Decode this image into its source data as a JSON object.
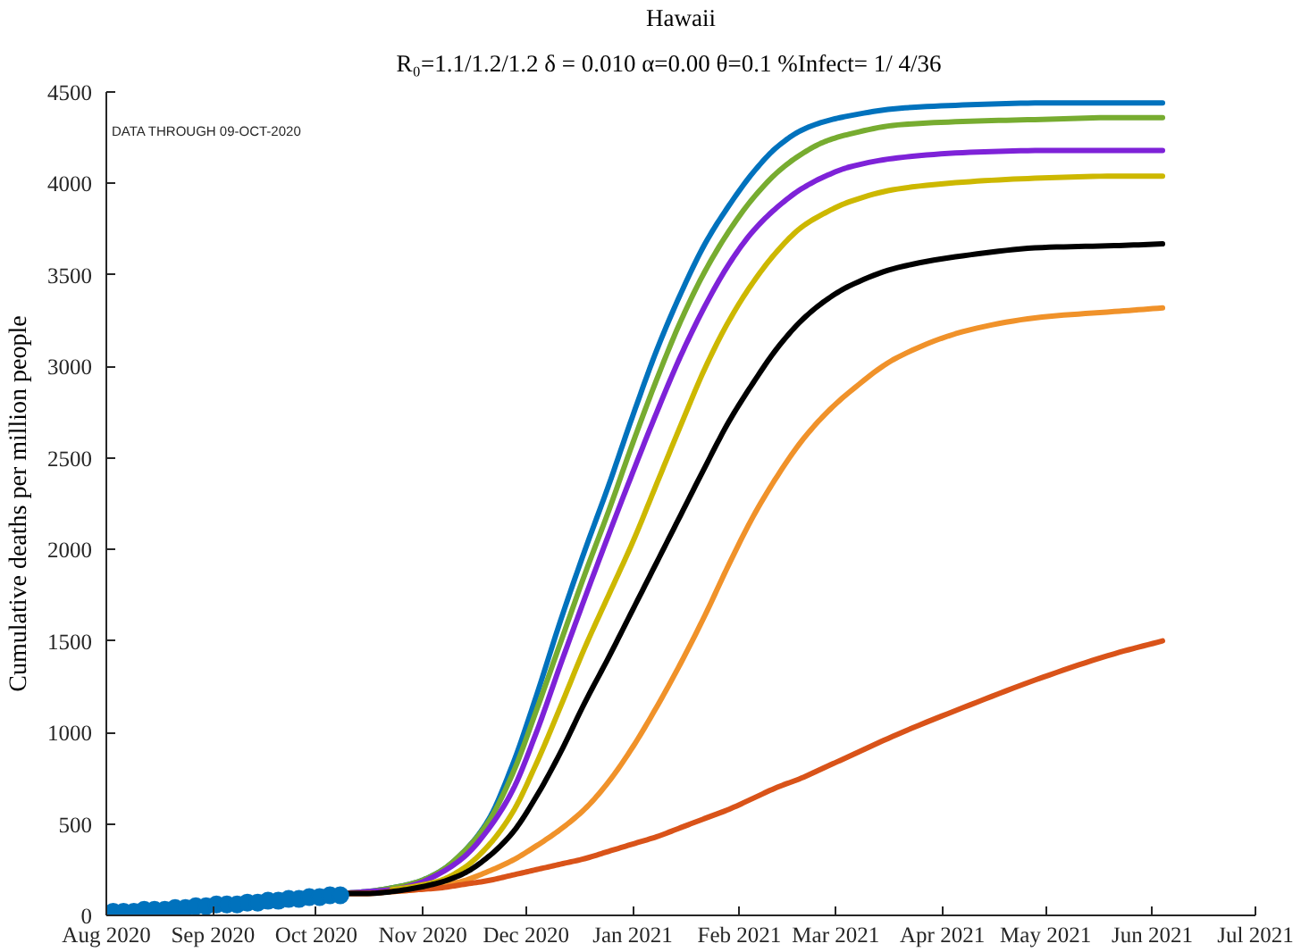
{
  "chart_data": {
    "type": "line",
    "title": "Hawaii",
    "subtitle": "R₀=1.1/1.2/1.2  δ = 0.010  α=0.00  θ=0.1  %Infect= 1/ 4/36",
    "ylabel": "Cumulative deaths per million people",
    "annotations": [
      "DATA THROUGH 09-OCT-2020"
    ],
    "xlim": [
      "2020-08-01",
      "2021-07-01"
    ],
    "xticks": [
      {
        "value": "2020-08-01",
        "label": "Aug 2020"
      },
      {
        "value": "2020-09-01",
        "label": "Sep 2020"
      },
      {
        "value": "2020-10-01",
        "label": "Oct 2020"
      },
      {
        "value": "2020-11-01",
        "label": "Nov 2020"
      },
      {
        "value": "2020-12-01",
        "label": "Dec 2020"
      },
      {
        "value": "2021-01-01",
        "label": "Jan 2021"
      },
      {
        "value": "2021-02-01",
        "label": "Feb 2021"
      },
      {
        "value": "2021-03-01",
        "label": "Mar 2021"
      },
      {
        "value": "2021-04-01",
        "label": "Apr 2021"
      },
      {
        "value": "2021-05-01",
        "label": "May 2021"
      },
      {
        "value": "2021-06-01",
        "label": "Jun 2021"
      },
      {
        "value": "2021-07-01",
        "label": "Jul 2021"
      }
    ],
    "ylim": [
      0,
      4500
    ],
    "yticks": [
      0,
      500,
      1000,
      1500,
      2000,
      2500,
      3000,
      3500,
      4000,
      4500
    ],
    "x": [
      "2020-10-09",
      "2020-10-16",
      "2020-10-23",
      "2020-10-30",
      "2020-11-06",
      "2020-11-13",
      "2020-11-20",
      "2020-11-27",
      "2020-12-04",
      "2020-12-11",
      "2020-12-18",
      "2020-12-25",
      "2021-01-01",
      "2021-01-08",
      "2021-01-15",
      "2021-01-22",
      "2021-01-29",
      "2021-02-05",
      "2021-02-12",
      "2021-02-19",
      "2021-02-26",
      "2021-03-05",
      "2021-03-19",
      "2021-04-09",
      "2021-04-30",
      "2021-05-21",
      "2021-06-04"
    ],
    "series": [
      {
        "color": "#0072bd",
        "values": [
          120,
          130,
          150,
          180,
          240,
          350,
          520,
          820,
          1200,
          1610,
          1990,
          2350,
          2730,
          3090,
          3400,
          3670,
          3880,
          4060,
          4200,
          4290,
          4340,
          4370,
          4410,
          4430,
          4440,
          4440,
          4440
        ]
      },
      {
        "color": "#77ac30",
        "values": [
          120,
          130,
          150,
          180,
          240,
          350,
          510,
          770,
          1120,
          1490,
          1860,
          2210,
          2580,
          2930,
          3250,
          3520,
          3740,
          3920,
          4060,
          4160,
          4230,
          4270,
          4320,
          4340,
          4350,
          4360,
          4360
        ]
      },
      {
        "color": "#7e22d8",
        "values": [
          120,
          130,
          140,
          170,
          230,
          320,
          470,
          680,
          1000,
          1370,
          1730,
          2080,
          2420,
          2750,
          3060,
          3330,
          3560,
          3740,
          3870,
          3970,
          4040,
          4090,
          4140,
          4170,
          4180,
          4180,
          4180
        ]
      },
      {
        "color": "#cdb800",
        "values": [
          null,
          null,
          140,
          160,
          190,
          260,
          380,
          560,
          830,
          1140,
          1460,
          1750,
          2040,
          2360,
          2680,
          2990,
          3250,
          3460,
          3630,
          3760,
          3840,
          3900,
          3970,
          4010,
          4030,
          4040,
          4040
        ]
      },
      {
        "color": "#f0922a",
        "values": [
          120,
          120,
          130,
          140,
          160,
          190,
          240,
          300,
          380,
          470,
          580,
          730,
          920,
          1140,
          1380,
          1640,
          1920,
          2180,
          2400,
          2590,
          2740,
          2860,
          3050,
          3200,
          3270,
          3300,
          3320
        ]
      },
      {
        "color": "#d95319",
        "values": [
          120,
          120,
          130,
          140,
          150,
          170,
          190,
          220,
          250,
          280,
          310,
          350,
          390,
          430,
          480,
          530,
          580,
          640,
          700,
          750,
          810,
          870,
          990,
          1150,
          1300,
          1430,
          1500
        ]
      },
      {
        "color": "#000000",
        "values": [
          120,
          120,
          130,
          150,
          180,
          230,
          320,
          450,
          650,
          890,
          1160,
          1410,
          1670,
          1930,
          2190,
          2450,
          2700,
          2910,
          3100,
          3250,
          3360,
          3440,
          3540,
          3610,
          3650,
          3660,
          3670
        ]
      },
      {
        "type": "scatter",
        "marker": "circle",
        "color": "#0072bd",
        "x": [
          "2020-08-03",
          "2020-08-06",
          "2020-08-09",
          "2020-08-12",
          "2020-08-15",
          "2020-08-18",
          "2020-08-21",
          "2020-08-24",
          "2020-08-27",
          "2020-08-30",
          "2020-09-02",
          "2020-09-05",
          "2020-09-08",
          "2020-09-11",
          "2020-09-14",
          "2020-09-17",
          "2020-09-20",
          "2020-09-23",
          "2020-09-26",
          "2020-09-29",
          "2020-10-02",
          "2020-10-05",
          "2020-10-08"
        ],
        "values": [
          20,
          20,
          20,
          30,
          30,
          30,
          40,
          40,
          50,
          50,
          60,
          60,
          60,
          70,
          70,
          80,
          80,
          90,
          90,
          100,
          100,
          110,
          110
        ]
      }
    ]
  }
}
